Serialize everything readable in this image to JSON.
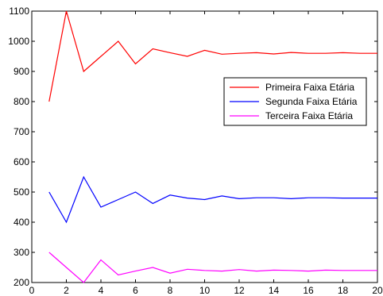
{
  "chart_data": {
    "type": "line",
    "title": "",
    "xlabel": "",
    "ylabel": "",
    "xlim": [
      0,
      20
    ],
    "ylim": [
      200,
      1100
    ],
    "xticks": [
      0,
      2,
      4,
      6,
      8,
      10,
      12,
      14,
      16,
      18,
      20
    ],
    "yticks": [
      200,
      300,
      400,
      500,
      600,
      700,
      800,
      900,
      1000,
      1100
    ],
    "grid": false,
    "legend_position": "right",
    "x": [
      1,
      2,
      3,
      4,
      5,
      6,
      7,
      8,
      9,
      10,
      11,
      12,
      13,
      14,
      15,
      16,
      17,
      18,
      19,
      20
    ],
    "series": [
      {
        "name": "Primeira Faixa Etária",
        "color": "#ff0000",
        "values": [
          800,
          1100,
          900,
          950,
          1000,
          925,
          975,
          962,
          950,
          970,
          957,
          960,
          962,
          958,
          963,
          960,
          960,
          962,
          960,
          960
        ]
      },
      {
        "name": "Segunda Faixa Etária",
        "color": "#0000ff",
        "values": [
          500,
          400,
          550,
          450,
          475,
          500,
          462,
          490,
          480,
          475,
          487,
          478,
          481,
          481,
          478,
          481,
          481,
          480,
          480,
          480
        ]
      },
      {
        "name": "Terceira Faixa Etária",
        "color": "#ff00ff",
        "values": [
          300,
          250,
          200,
          275,
          225,
          238,
          250,
          231,
          244,
          240,
          238,
          243,
          238,
          241,
          240,
          238,
          241,
          240,
          240,
          240
        ]
      }
    ]
  }
}
